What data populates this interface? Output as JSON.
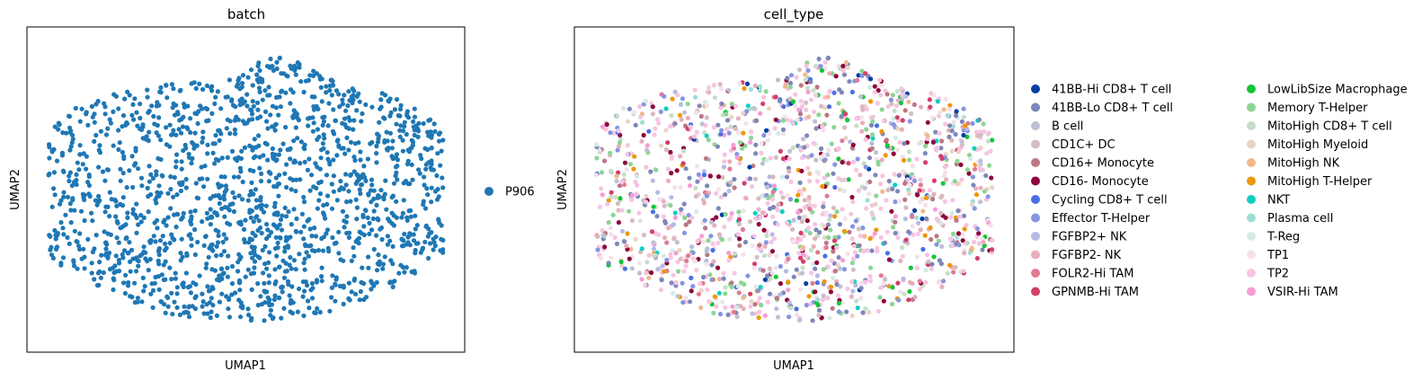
{
  "chart_data": [
    {
      "type": "scatter",
      "title": "batch",
      "xlabel": "UMAP1",
      "ylabel": "UMAP2",
      "ticks": false,
      "legend_placement": "right",
      "series": [
        {
          "name": "P906",
          "color": "#1f77b4"
        }
      ],
      "n_points": 1600
    },
    {
      "type": "scatter",
      "title": "cell_type",
      "xlabel": "UMAP1",
      "ylabel": "UMAP2",
      "ticks": false,
      "legend_placement": "right",
      "legend_columns": 2,
      "series": [
        {
          "name": "41BB-Hi CD8+ T cell",
          "color": "#023fa5",
          "weight": 2
        },
        {
          "name": "41BB-Lo CD8+ T cell",
          "color": "#7d87b9",
          "weight": 10
        },
        {
          "name": "B cell",
          "color": "#bec1d4",
          "weight": 4
        },
        {
          "name": "CD1C+ DC",
          "color": "#d6bcc0",
          "weight": 4
        },
        {
          "name": "CD16+ Monocyte",
          "color": "#bb7784",
          "weight": 3
        },
        {
          "name": "CD16- Monocyte",
          "color": "#8e063b",
          "weight": 6
        },
        {
          "name": "Cycling CD8+ T cell",
          "color": "#4a6fe3",
          "weight": 2
        },
        {
          "name": "Effector T-Helper",
          "color": "#8595e1",
          "weight": 5
        },
        {
          "name": "FGFBP2+ NK",
          "color": "#b5bbe3",
          "weight": 4
        },
        {
          "name": "FGFBP2- NK",
          "color": "#e6afb9",
          "weight": 5
        },
        {
          "name": "FOLR2-Hi TAM",
          "color": "#e07b91",
          "weight": 3
        },
        {
          "name": "GPNMB-Hi TAM",
          "color": "#d33f6a",
          "weight": 4
        },
        {
          "name": "LowLibSize Macrophage",
          "color": "#11c638",
          "weight": 3
        },
        {
          "name": "Memory T-Helper",
          "color": "#8dd593",
          "weight": 6
        },
        {
          "name": "MitoHigh CD8+ T cell",
          "color": "#c6dec7",
          "weight": 5
        },
        {
          "name": "MitoHigh Myeloid",
          "color": "#ead3c6",
          "weight": 4
        },
        {
          "name": "MitoHigh NK",
          "color": "#f0b98d",
          "weight": 2
        },
        {
          "name": "MitoHigh T-Helper",
          "color": "#ef9708",
          "weight": 3
        },
        {
          "name": "NKT",
          "color": "#0fcfc0",
          "weight": 2
        },
        {
          "name": "Plasma cell",
          "color": "#9cded6",
          "weight": 2
        },
        {
          "name": "T-Reg",
          "color": "#d5eae7",
          "weight": 3
        },
        {
          "name": "TP1",
          "color": "#f3e1eb",
          "weight": 8
        },
        {
          "name": "TP2",
          "color": "#f6c4e1",
          "weight": 22
        },
        {
          "name": "VSIR-Hi TAM",
          "color": "#f79cd4",
          "weight": 2
        }
      ],
      "n_points": 1600
    }
  ]
}
